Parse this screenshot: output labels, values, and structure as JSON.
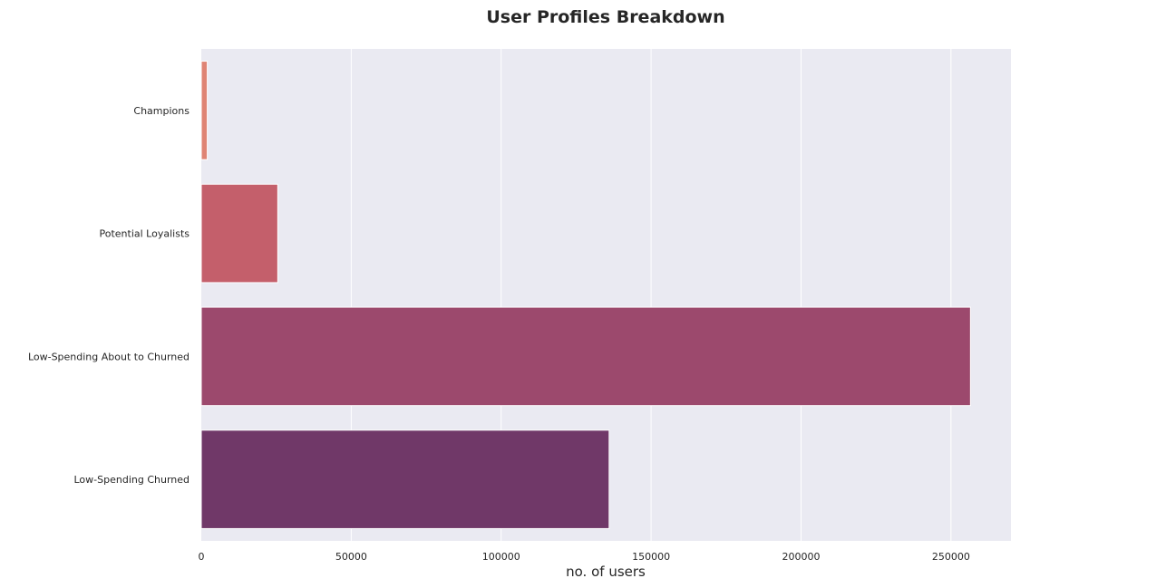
{
  "chart_data": {
    "type": "bar",
    "orientation": "horizontal",
    "title": "User Profiles Breakdown",
    "xlabel": "no. of users",
    "ylabel": "",
    "categories": [
      "Champions",
      "Potential Loyalists",
      "Low-Spending About to Churned",
      "Low-Spending Churned"
    ],
    "values": [
      2000,
      25500,
      256500,
      136000
    ],
    "colors": [
      "#df8474",
      "#c45f6b",
      "#9c496d",
      "#703868"
    ],
    "xlim": [
      0,
      270000
    ],
    "xticks": [
      0,
      50000,
      100000,
      150000,
      200000,
      250000
    ],
    "xtick_labels": [
      "0",
      "50000",
      "100000",
      "150000",
      "200000",
      "250000"
    ],
    "grid": "vertical",
    "background": "#eaeaf2",
    "gridline_color": "#ffffff"
  }
}
